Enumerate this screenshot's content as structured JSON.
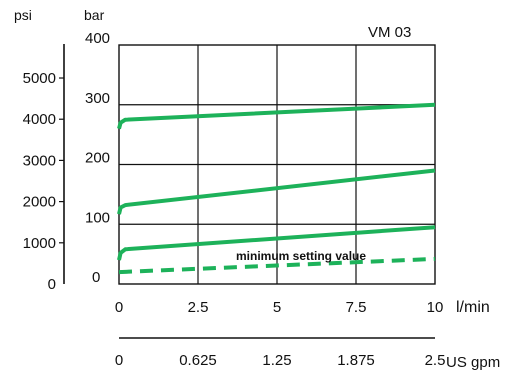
{
  "chart_data": {
    "type": "line",
    "title": "VM 03",
    "x": {
      "label": "l/min",
      "range": [
        0,
        10
      ],
      "ticks": [
        0,
        2.5,
        5,
        7.5,
        10
      ],
      "tick_labels": [
        "0",
        "2.5",
        "5",
        "7.5",
        "10"
      ]
    },
    "x_secondary": {
      "label": "US gpm",
      "ticks": [
        0,
        0.625,
        1.25,
        1.875,
        2.5
      ],
      "tick_labels": [
        "0",
        "0.625",
        "1.25",
        "1.875",
        "2.5"
      ]
    },
    "y": {
      "label": "bar",
      "range": [
        0,
        400
      ],
      "ticks": [
        0,
        100,
        200,
        300,
        400
      ],
      "tick_labels": [
        "0",
        "100",
        "200",
        "300",
        "400"
      ]
    },
    "y_secondary": {
      "label": "psi",
      "ticks": [
        0,
        1000,
        2000,
        3000,
        4000,
        5000
      ],
      "tick_labels": [
        "0",
        "1000",
        "2000",
        "3000",
        "4000",
        "5000"
      ]
    },
    "grid": true,
    "series": [
      {
        "style": "solid",
        "x": [
          0,
          0.05,
          0.2,
          10
        ],
        "y": [
          260,
          270,
          275,
          300
        ]
      },
      {
        "style": "solid",
        "x": [
          0,
          0.05,
          0.2,
          10
        ],
        "y": [
          117,
          128,
          132,
          190
        ]
      },
      {
        "style": "solid",
        "x": [
          0,
          0.05,
          0.2,
          10
        ],
        "y": [
          40,
          52,
          58,
          95
        ]
      },
      {
        "style": "dashed",
        "x": [
          0,
          10
        ],
        "y": [
          20,
          42
        ]
      }
    ],
    "annotations": [
      {
        "text": "minimum setting value",
        "x": 3.7,
        "y": 47
      }
    ],
    "colors": {
      "series": "#1db25a",
      "axis": "#111111",
      "grid": "#111111"
    }
  }
}
